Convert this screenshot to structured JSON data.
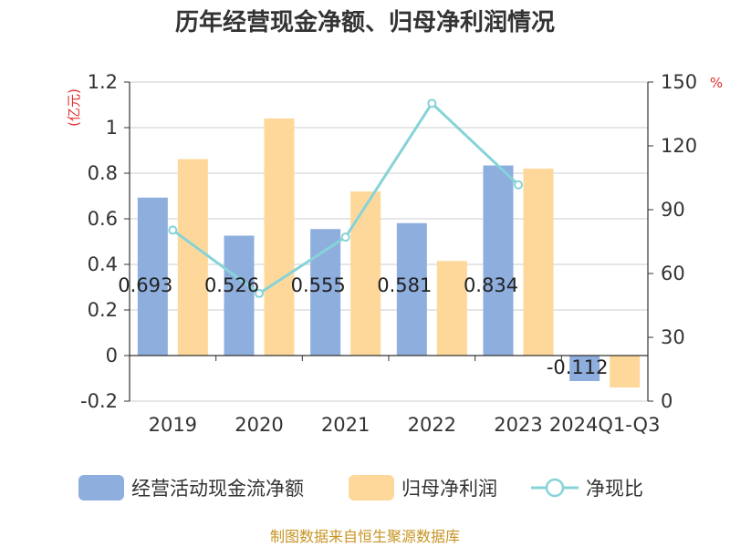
{
  "chart_data": {
    "type": "bar",
    "title": "历年经营现金净额、归母净利润情况",
    "categories": [
      "2019",
      "2020",
      "2021",
      "2022",
      "2023",
      "2024Q1-Q3"
    ],
    "series": [
      {
        "name": "经营活动现金流净额",
        "type": "bar",
        "axis": "left",
        "color": "#8eaede",
        "values": [
          0.693,
          0.526,
          0.555,
          0.581,
          0.834,
          -0.112
        ],
        "labels": [
          "0.693",
          "0.526",
          "0.555",
          "0.581",
          "0.834",
          "-0.112"
        ]
      },
      {
        "name": "归母净利润",
        "type": "bar",
        "axis": "left",
        "color": "#fdd89a",
        "values": [
          0.862,
          1.04,
          0.72,
          0.415,
          0.82,
          -0.14
        ]
      },
      {
        "name": "净现比",
        "type": "line",
        "axis": "right",
        "color": "#86d3d8",
        "values": [
          80.4,
          50.6,
          77.1,
          140,
          101.7,
          null
        ]
      }
    ],
    "y_left": {
      "unit": "(亿元)",
      "range": [
        -0.2,
        1.2
      ],
      "ticks": [
        "-0.2",
        "0",
        "0.2",
        "0.4",
        "0.6",
        "0.8",
        "1",
        "1.2"
      ]
    },
    "y_right": {
      "unit": "%",
      "range": [
        0,
        150
      ],
      "ticks": [
        "0",
        "30",
        "60",
        "90",
        "120",
        "150"
      ]
    },
    "grid": true,
    "legend_position": "bottom",
    "source": "制图数据来自恒生聚源数据库"
  }
}
